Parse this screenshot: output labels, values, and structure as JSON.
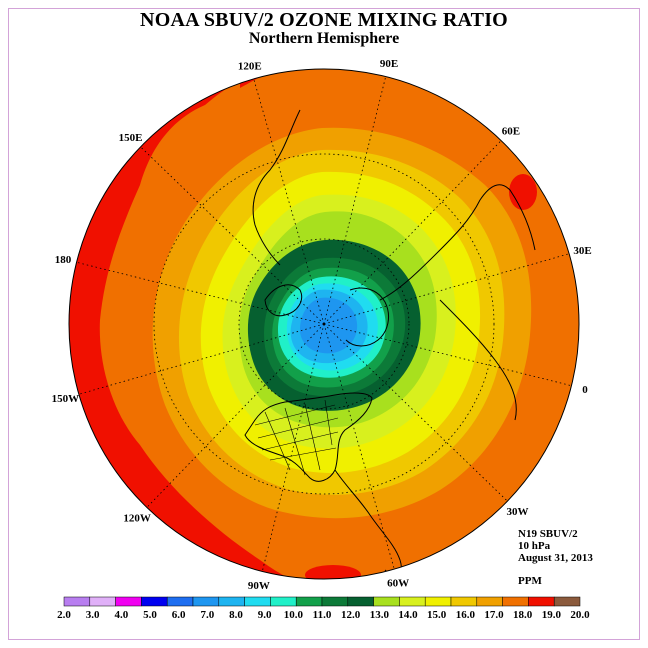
{
  "title": "NOAA SBUV/2 OZONE MIXING RATIO",
  "subtitle": "Northern Hemisphere",
  "meridian_labels": [
    {
      "deg": 90,
      "text": "90E"
    },
    {
      "deg": 60,
      "text": "60E"
    },
    {
      "deg": 30,
      "text": "30E"
    },
    {
      "deg": 0,
      "text": "0"
    },
    {
      "deg": -30,
      "text": "30W"
    },
    {
      "deg": -60,
      "text": "60W"
    },
    {
      "deg": -90,
      "text": "90W"
    },
    {
      "deg": -120,
      "text": "120W"
    },
    {
      "deg": -150,
      "text": "150W"
    },
    {
      "deg": 180,
      "text": "180"
    },
    {
      "deg": 150,
      "text": "150E"
    },
    {
      "deg": 120,
      "text": "120E"
    }
  ],
  "info": {
    "instrument": "N19 SBUV/2",
    "level": "10 hPa",
    "date": "August 31, 2013",
    "units": "PPM"
  },
  "colorbar": {
    "ticks": [
      "2.0",
      "3.0",
      "4.0",
      "5.0",
      "6.0",
      "7.0",
      "8.0",
      "9.0",
      "10.0",
      "11.0",
      "12.0",
      "13.0",
      "14.0",
      "15.0",
      "16.0",
      "17.0",
      "18.0",
      "19.0",
      "20.0"
    ],
    "colors": [
      "#b87ef0",
      "#e0b0f8",
      "#f000f0",
      "#0000f0",
      "#1e6ef0",
      "#1e96f0",
      "#1eb4f0",
      "#20dcf0",
      "#20f0c8",
      "#12a04a",
      "#0c7a38",
      "#066030",
      "#a8e01e",
      "#d8f01e",
      "#f0f000",
      "#f0c800",
      "#f0a000",
      "#f07000",
      "#f01000",
      "#8b5a3c"
    ]
  }
}
